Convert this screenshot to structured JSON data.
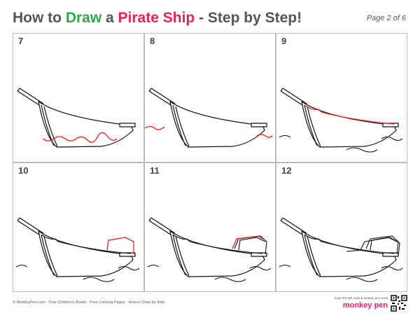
{
  "header": {
    "title_parts": [
      "How to ",
      "Draw",
      " a ",
      "Pirate Ship",
      " - Step by Step!"
    ],
    "page": "Page 2 of 6"
  },
  "steps": [
    "7",
    "8",
    "9",
    "10",
    "11",
    "12"
  ],
  "footer": {
    "copyright": "© MonkeyPen.com",
    "links": [
      "Free Children's Books",
      "Free Coloring Pages",
      "How to Draw for Kids"
    ],
    "scan": "Scan the QR code & upload your work",
    "logo": "monkey pen"
  }
}
